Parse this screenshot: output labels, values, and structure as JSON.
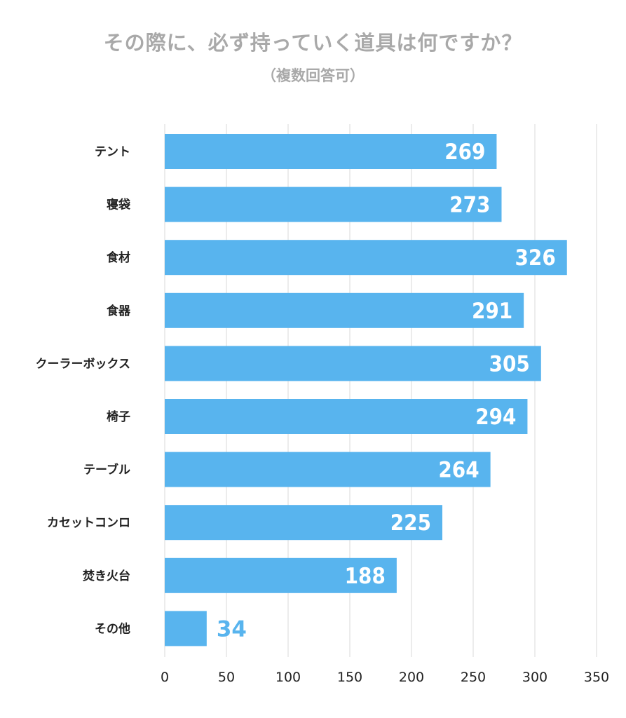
{
  "title": "その際に、必ず持っていく道具は何ですか？",
  "subtitle": "（複数回答可）",
  "chart_data": {
    "type": "bar",
    "orientation": "horizontal",
    "title": "その際に、必ず持っていく道具は何ですか？",
    "subtitle": "（複数回答可）",
    "categories": [
      "テント",
      "寝袋",
      "食材",
      "食器",
      "クーラーボックス",
      "椅子",
      "テーブル",
      "カセットコンロ",
      "焚き火台",
      "その他"
    ],
    "values": [
      269,
      273,
      326,
      291,
      305,
      294,
      264,
      225,
      188,
      34
    ],
    "xlim": [
      0,
      350
    ],
    "xticks": [
      0,
      50,
      100,
      150,
      200,
      250,
      300,
      350
    ],
    "xlabel": "",
    "ylabel": "",
    "grid": true,
    "bar_color": "#58b4ee",
    "grid_color": "#d9d9d9"
  }
}
